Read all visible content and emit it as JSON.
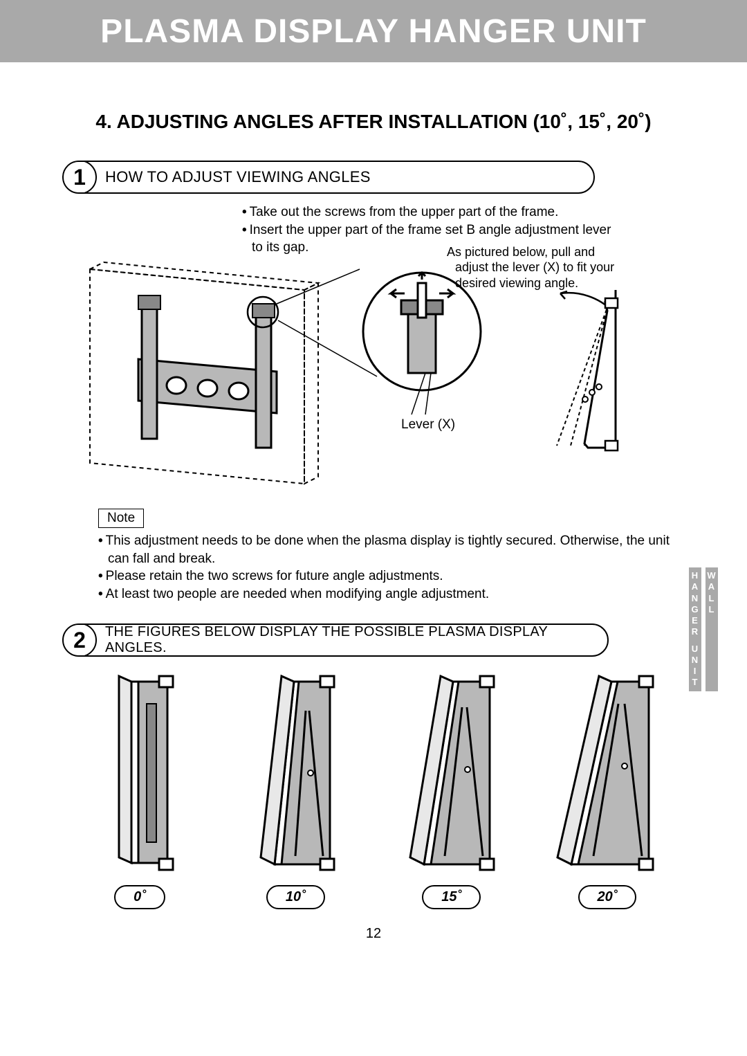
{
  "header": {
    "title": "PLASMA DISPLAY HANGER UNIT"
  },
  "section": {
    "title": "4. ADJUSTING ANGLES AFTER INSTALLATION (10˚, 15˚, 20˚)"
  },
  "step1": {
    "num": "1",
    "label": "HOW TO ADJUST VIEWING ANGLES",
    "bullets": {
      "l0": "Take out the screws from the upper part of the frame.",
      "l1": "Insert the upper part of the frame set B angle adjustment  lever",
      "l2": "to its gap.",
      "l3": "As pictured below, pull and",
      "l4": "adjust the lever (X) to fit your",
      "l5": "desired viewing angle."
    },
    "lever_label": "Lever (X)"
  },
  "note": {
    "label": "Note",
    "l0": "This adjustment needs to be done when the plasma display is tightly secured.  Otherwise, the unit",
    "l1": "can fall and break.",
    "l2": "Please retain the two screws for future angle adjustments.",
    "l3": "At least two people are needed when modifying angle adjustment."
  },
  "step2": {
    "num": "2",
    "label": "THE FIGURES BELOW DISPLAY THE POSSIBLE PLASMA DISPLAY ANGLES."
  },
  "side_tabs": {
    "a": "HANGER UNIT",
    "b": "WALL"
  },
  "angles": {
    "a0": "0˚",
    "a1": "10˚",
    "a2": "15˚",
    "a3": "20˚"
  },
  "page": "12",
  "colors": {
    "header_bg": "#a9a9a9",
    "header_text": "#ffffff",
    "panel_fill": "#b8b8b8",
    "line": "#000000",
    "bg": "#ffffff"
  }
}
